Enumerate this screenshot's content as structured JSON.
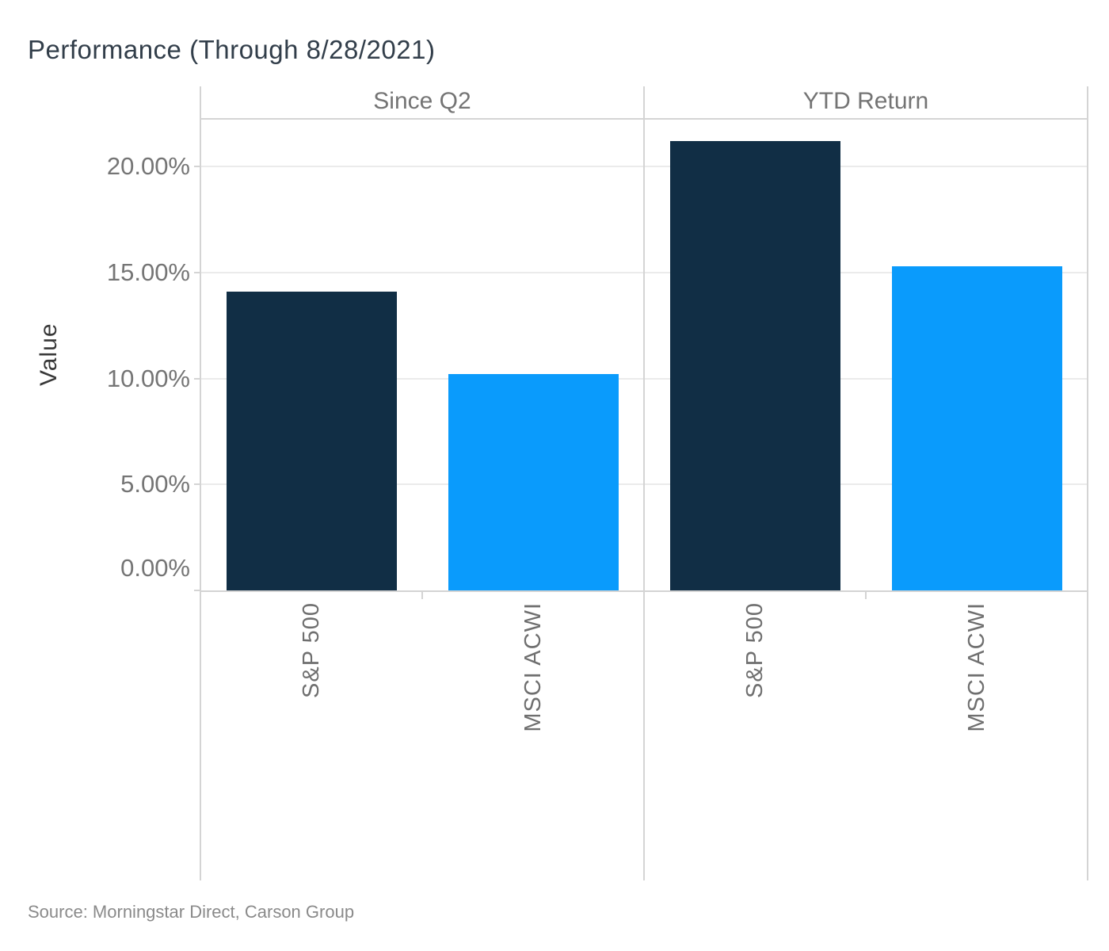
{
  "title": "Performance (Through 8/28/2021)",
  "source": "Source: Morningstar Direct, Carson Group",
  "chart_data": {
    "type": "bar",
    "panels": [
      {
        "label": "Since Q2",
        "categories": [
          "S&P 500",
          "MSCI ACWI"
        ],
        "values": [
          14.1,
          10.2
        ]
      },
      {
        "label": "YTD Return",
        "categories": [
          "S&P 500",
          "MSCI ACWI"
        ],
        "values": [
          21.2,
          15.3
        ]
      }
    ],
    "ylabel": "Value",
    "y_ticks": [
      {
        "value": 0,
        "label": "0.00%"
      },
      {
        "value": 5,
        "label": "5.00%"
      },
      {
        "value": 10,
        "label": "10.00%"
      },
      {
        "value": 15,
        "label": "15.00%"
      },
      {
        "value": 20,
        "label": "20.00%"
      }
    ],
    "ylim": [
      0,
      22.25
    ],
    "grid": true,
    "legend": "none",
    "series_colors": {
      "S&P 500": "#112e45",
      "MSCI ACWI": "#0a9bfc"
    },
    "border_color": "#d4d4d4",
    "gridline_color": "#ebebeb"
  }
}
